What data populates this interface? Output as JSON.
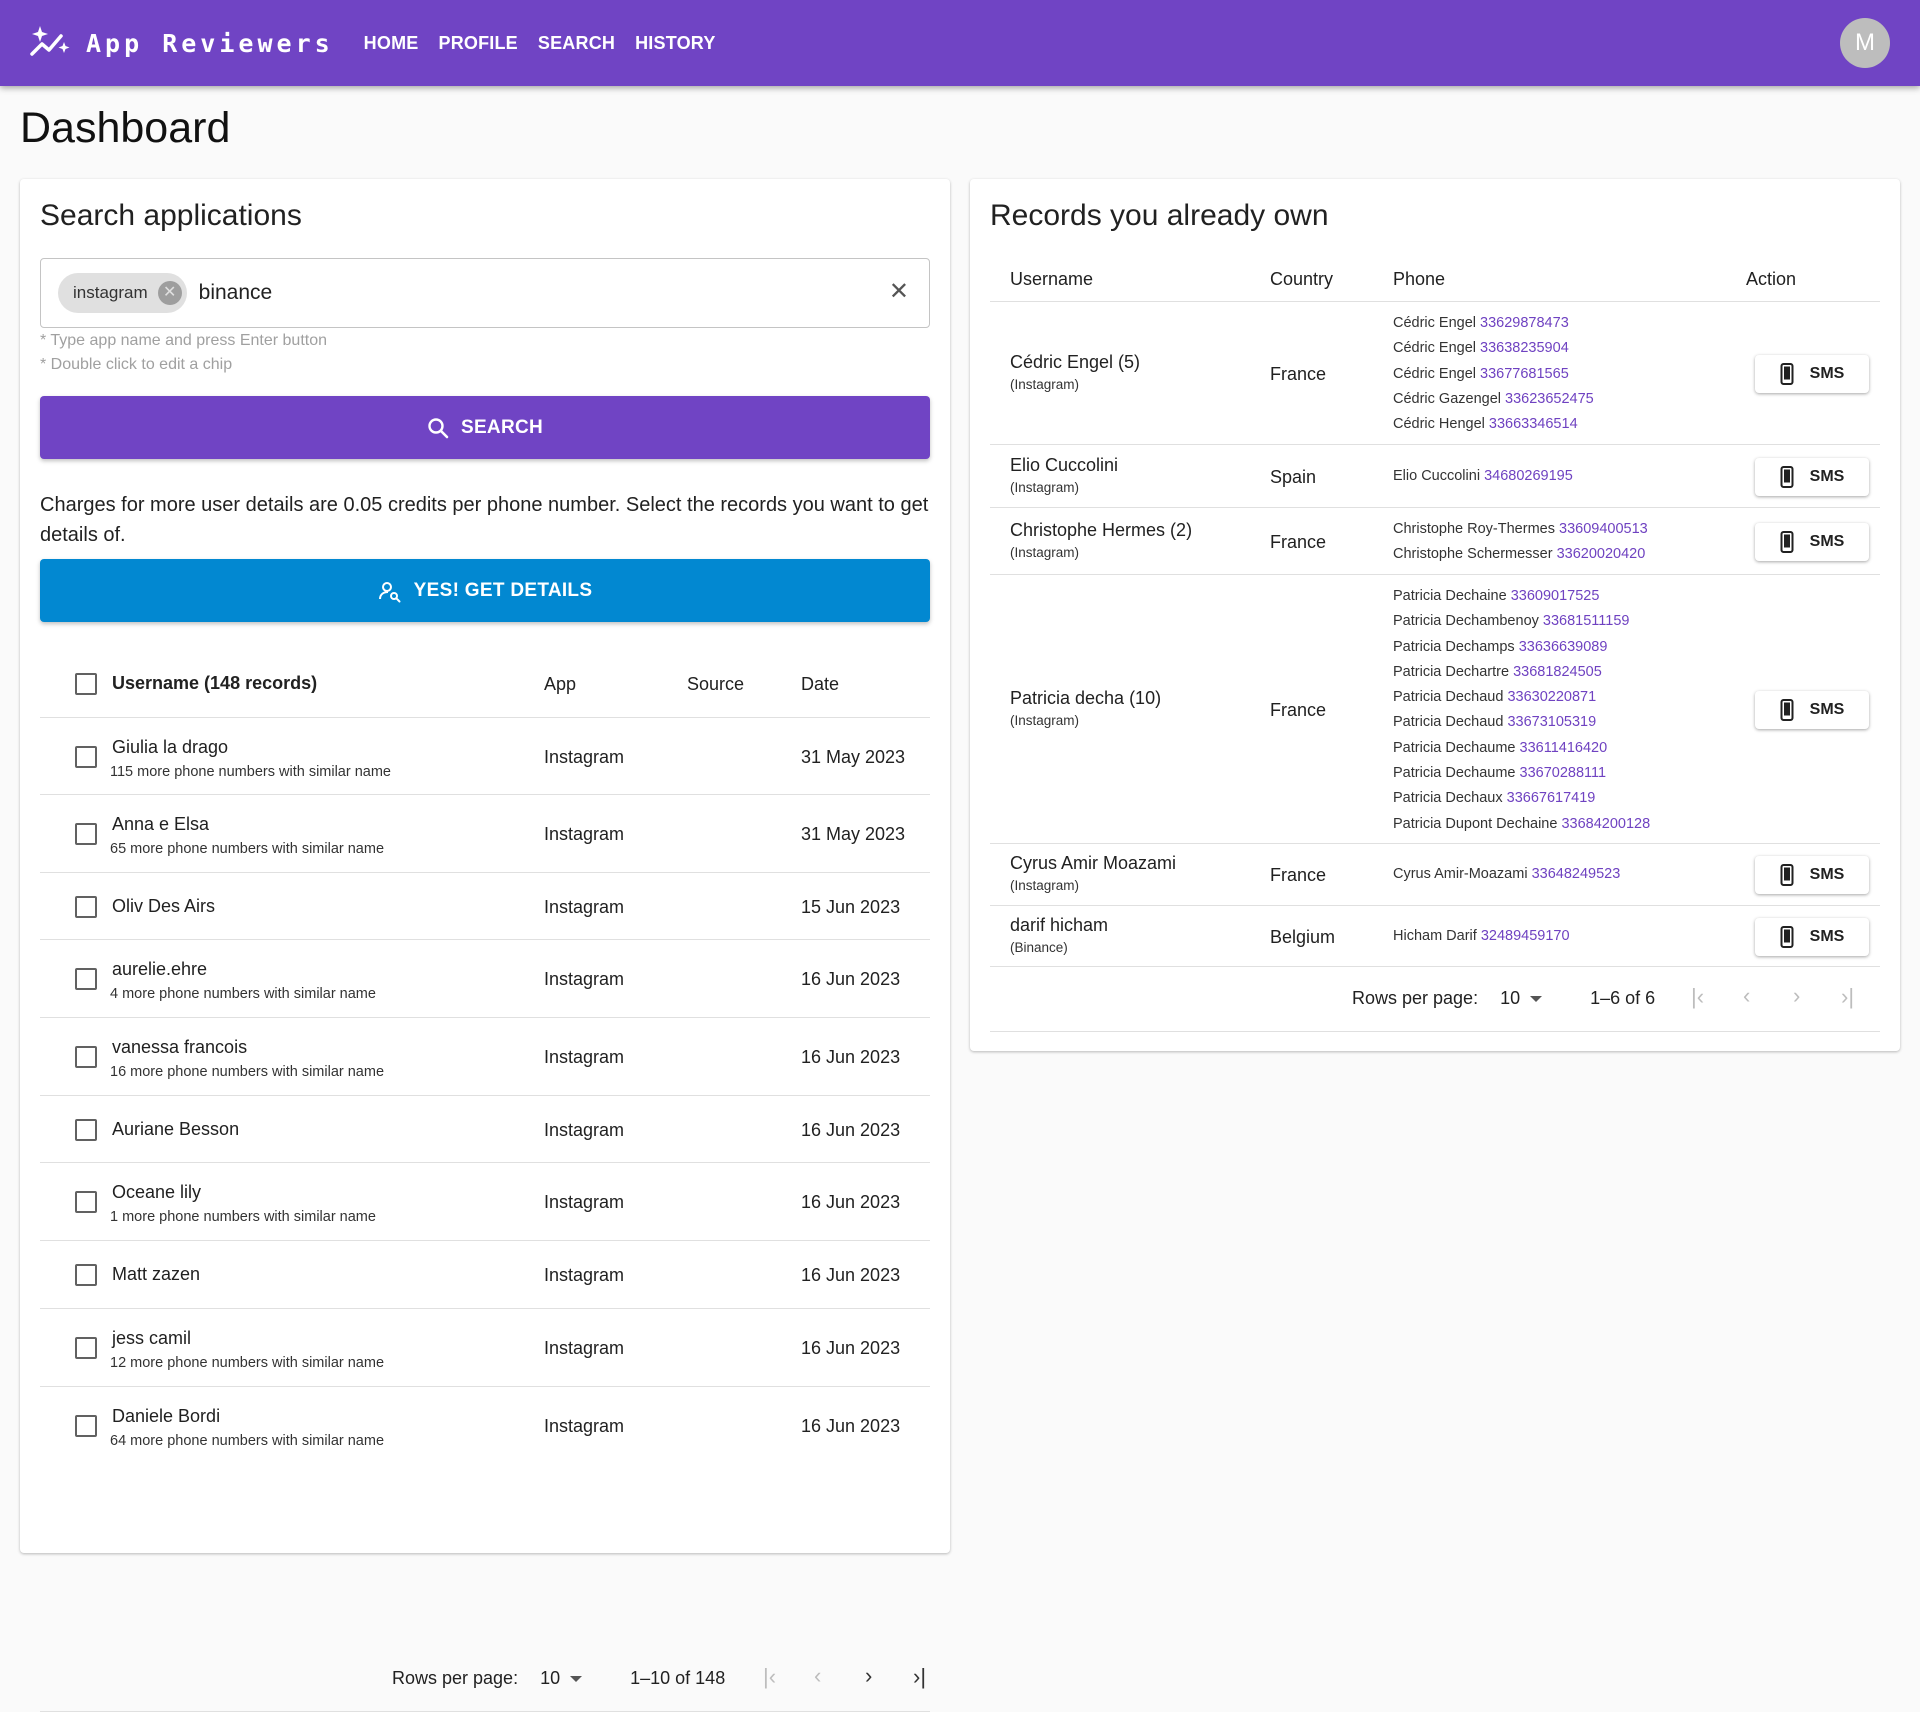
{
  "header": {
    "brand": "App Reviewers",
    "nav": [
      "HOME",
      "PROFILE",
      "SEARCH",
      "HISTORY"
    ],
    "avatar_initial": "M",
    "color": "#7044c4"
  },
  "page": {
    "title": "Dashboard"
  },
  "search": {
    "title": "Search applications",
    "chips": [
      "instagram"
    ],
    "value": "binance",
    "hint1": "* Type app name and press Enter button",
    "hint2": "* Double click to edit a chip",
    "button": "SEARCH",
    "charges": "Charges for more user details are 0.05 credits per phone number. Select the records you want to get details of.",
    "details_button": "YES! GET DETAILS",
    "details_color": "#0288d1"
  },
  "records": {
    "columns": [
      "Username (148 records)",
      "App",
      "Source",
      "Date"
    ],
    "rows": [
      {
        "username": "Giulia la drago",
        "sub": "115 more phone numbers with similar name",
        "app": "Instagram",
        "source": "",
        "date": "31 May 2023"
      },
      {
        "username": "Anna e Elsa",
        "sub": "65 more phone numbers with similar name",
        "app": "Instagram",
        "source": "",
        "date": "31 May 2023"
      },
      {
        "username": "Oliv Des Airs",
        "sub": "",
        "app": "Instagram",
        "source": "",
        "date": "15 Jun 2023"
      },
      {
        "username": "aurelie.ehre",
        "sub": "4 more phone numbers with similar name",
        "app": "Instagram",
        "source": "",
        "date": "16 Jun 2023"
      },
      {
        "username": "vanessa francois",
        "sub": "16 more phone numbers with similar name",
        "app": "Instagram",
        "source": "",
        "date": "16 Jun 2023"
      },
      {
        "username": "Auriane Besson",
        "sub": "",
        "app": "Instagram",
        "source": "",
        "date": "16 Jun 2023"
      },
      {
        "username": "Oceane lily",
        "sub": "1 more phone numbers with similar name",
        "app": "Instagram",
        "source": "",
        "date": "16 Jun 2023"
      },
      {
        "username": "Matt zazen",
        "sub": "",
        "app": "Instagram",
        "source": "",
        "date": "16 Jun 2023"
      },
      {
        "username": "jess camil",
        "sub": "12 more phone numbers with similar name",
        "app": "Instagram",
        "source": "",
        "date": "16 Jun 2023"
      },
      {
        "username": "Daniele Bordi",
        "sub": "64 more phone numbers with similar name",
        "app": "Instagram",
        "source": "",
        "date": "16 Jun 2023"
      }
    ],
    "pagination": {
      "rows_label": "Rows per page:",
      "rows_value": "10",
      "range": "1–10 of 148"
    }
  },
  "owned": {
    "title": "Records you already own",
    "columns": [
      "Username",
      "Country",
      "Phone",
      "Action"
    ],
    "rows": [
      {
        "username": "Cédric Engel (5)",
        "app": "(Instagram)",
        "country": "France",
        "phones": [
          {
            "name": "Cédric Engel",
            "number": "33629878473"
          },
          {
            "name": "Cédric Engel",
            "number": "33638235904"
          },
          {
            "name": "Cédric Engel",
            "number": "33677681565"
          },
          {
            "name": "Cédric Gazengel",
            "number": "33623652475"
          },
          {
            "name": "Cédric Hengel",
            "number": "33663346514"
          }
        ],
        "action": "SMS"
      },
      {
        "username": "Elio Cuccolini",
        "app": "(Instagram)",
        "country": "Spain",
        "phones": [
          {
            "name": "Elio Cuccolini",
            "number": "34680269195"
          }
        ],
        "action": "SMS"
      },
      {
        "username": "Christophe Hermes (2)",
        "app": "(Instagram)",
        "country": "France",
        "phones": [
          {
            "name": "Christophe Roy-Thermes",
            "number": "33609400513"
          },
          {
            "name": "Christophe Schermesser",
            "number": "33620020420"
          }
        ],
        "action": "SMS"
      },
      {
        "username": "Patricia decha (10)",
        "app": "(Instagram)",
        "country": "France",
        "phones": [
          {
            "name": "Patricia Dechaine",
            "number": "33609017525"
          },
          {
            "name": "Patricia Dechambenoy",
            "number": "33681511159"
          },
          {
            "name": "Patricia Dechamps",
            "number": "33636639089"
          },
          {
            "name": "Patricia Dechartre",
            "number": "33681824505"
          },
          {
            "name": "Patricia Dechaud",
            "number": "33630220871"
          },
          {
            "name": "Patricia Dechaud",
            "number": "33673105319"
          },
          {
            "name": "Patricia Dechaume",
            "number": "33611416420"
          },
          {
            "name": "Patricia Dechaume",
            "number": "33670288111"
          },
          {
            "name": "Patricia Dechaux",
            "number": "33667617419"
          },
          {
            "name": "Patricia Dupont Dechaine",
            "number": "33684200128"
          }
        ],
        "action": "SMS"
      },
      {
        "username": "Cyrus Amir Moazami",
        "app": "(Instagram)",
        "country": "France",
        "phones": [
          {
            "name": "Cyrus Amir-Moazami",
            "number": "33648249523"
          }
        ],
        "action": "SMS"
      },
      {
        "username": "darif hicham",
        "app": "(Binance)",
        "country": "Belgium",
        "phones": [
          {
            "name": "Hicham Darif",
            "number": "32489459170"
          }
        ],
        "action": "SMS"
      }
    ],
    "pagination": {
      "rows_label": "Rows per page:",
      "rows_value": "10",
      "range": "1–6 of 6"
    }
  }
}
